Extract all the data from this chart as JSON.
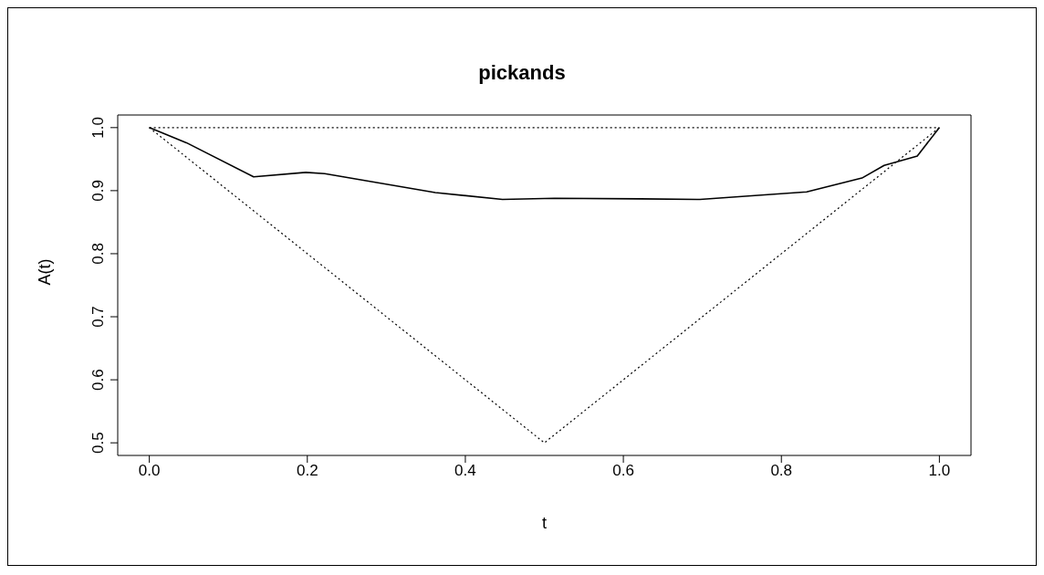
{
  "chart_data": {
    "type": "line",
    "title": "pickands",
    "xlabel": "t",
    "ylabel": "A(t)",
    "xlim": [
      -0.04,
      1.04
    ],
    "ylim": [
      0.48,
      1.02
    ],
    "xticks": [
      {
        "value": 0,
        "label": "0.0"
      },
      {
        "value": 0.2,
        "label": "0.2"
      },
      {
        "value": 0.4,
        "label": "0.4"
      },
      {
        "value": 0.6,
        "label": "0.6"
      },
      {
        "value": 0.8,
        "label": "0.8"
      },
      {
        "value": 1,
        "label": "1.0"
      }
    ],
    "yticks": [
      {
        "value": 0.5,
        "label": "0.5"
      },
      {
        "value": 0.6,
        "label": "0.6"
      },
      {
        "value": 0.7,
        "label": "0.7"
      },
      {
        "value": 0.8,
        "label": "0.8"
      },
      {
        "value": 0.9,
        "label": "0.9"
      },
      {
        "value": 1,
        "label": "1.0"
      }
    ],
    "grid": false,
    "marker": "none",
    "series": [
      {
        "color": "#000000",
        "line_style": "solid",
        "x": [
          0,
          0.047,
          0.132,
          0.198,
          0.222,
          0.362,
          0.447,
          0.513,
          0.622,
          0.697,
          0.832,
          0.902,
          0.93,
          0.972,
          1
        ],
        "values": [
          1,
          0.976,
          0.922,
          0.929,
          0.927,
          0.897,
          0.886,
          0.888,
          0.887,
          0.886,
          0.898,
          0.92,
          0.94,
          0.955,
          1
        ]
      },
      {
        "color": "#000000",
        "line_style": "dotted",
        "x": [
          0,
          1
        ],
        "values": [
          1,
          1
        ]
      },
      {
        "color": "#000000",
        "line_style": "dotted",
        "x": [
          0,
          0.5,
          1
        ],
        "values": [
          1,
          0.5,
          1
        ]
      }
    ]
  }
}
